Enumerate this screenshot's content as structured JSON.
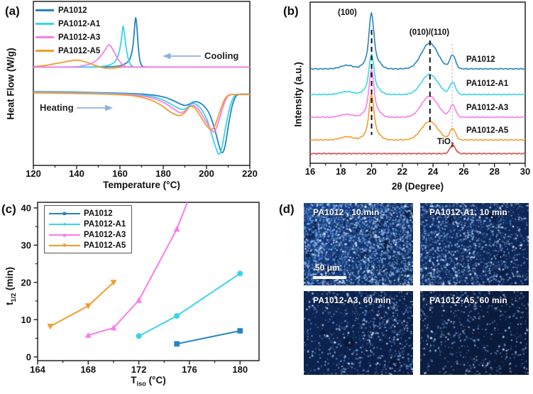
{
  "colors": {
    "pa1012": "#2484c2",
    "pa1012_a1": "#38d4ec",
    "pa1012_a3": "#f97ce8",
    "pa1012_a5": "#f09d2d",
    "tio2": "#dc4a41",
    "annotation_arrow": "#8fb0e0",
    "axis": "#222222",
    "dashed_guide": "#111111",
    "dotted_guide": "#b9aca4"
  },
  "panels": {
    "a": {
      "tag": "(a)",
      "xlabel": "Temperature (°C)",
      "ylabel": "Heat Flow (W/g)",
      "cooling_label": "Cooling",
      "heating_label": "Heating",
      "legend": [
        {
          "label": "PA1012",
          "color": "#2484c2"
        },
        {
          "label": "PA1012-A1",
          "color": "#38d4ec"
        },
        {
          "label": "PA1012-A3",
          "color": "#f97ce8"
        },
        {
          "label": "PA1012-A5",
          "color": "#f09d2d"
        }
      ]
    },
    "b": {
      "tag": "(b)",
      "xlabel": "2θ (Degree)",
      "ylabel": "Intensity (a.u.)",
      "peak_label_100": "(100)",
      "peak_label_010": "(010)/(110)",
      "tio2_label": {
        "main": "TiO",
        "sub": "2"
      },
      "curve_labels": [
        "PA1012",
        "PA1012-A1",
        "PA1012-A3",
        "PA1012-A5"
      ]
    },
    "c": {
      "tag": "(c)",
      "xlabel": {
        "main": "T",
        "sub": "iso",
        "rest": " (°C)"
      },
      "ylabel": {
        "main": "t",
        "sub": "1/2",
        "rest": " (min)"
      },
      "legend": [
        {
          "label": "PA1012",
          "color": "#2484c2",
          "marker": "square"
        },
        {
          "label": "PA1012-A1",
          "color": "#38d4ec",
          "marker": "circle"
        },
        {
          "label": "PA1012-A3",
          "color": "#f97ce8",
          "marker": "triangle-up"
        },
        {
          "label": "PA1012-A5",
          "color": "#f09d2d",
          "marker": "triangle-down"
        }
      ]
    },
    "d": {
      "tag": "(d)",
      "scale_bar_text": "50 μm",
      "images": [
        {
          "label": "PA1012 , 10 min",
          "brightness": "high",
          "has_scale_bar": true
        },
        {
          "label": "PA1012-A1, 10 min",
          "brightness": "medium",
          "has_scale_bar": false
        },
        {
          "label": "PA1012-A3, 60 min",
          "brightness": "low",
          "has_scale_bar": false
        },
        {
          "label": "PA1012-A5, 60 min",
          "brightness": "very-low",
          "has_scale_bar": false
        }
      ]
    }
  },
  "chart_data": [
    {
      "id": "a",
      "type": "line",
      "title": "DSC cooling and heating thermograms",
      "xlabel": "Temperature (°C)",
      "ylabel": "Heat Flow (W/g)",
      "xlim": [
        120,
        220
      ],
      "x_ticks": [
        120,
        140,
        160,
        180,
        200,
        220
      ],
      "x_minor_step": 10,
      "y_axis": "arbitrary (no ticks)",
      "annotations": [
        {
          "text": "Cooling",
          "arrow": "left",
          "near_x": 185
        },
        {
          "text": "Heating",
          "arrow": "right",
          "near_x": 135
        }
      ],
      "series": [
        {
          "name": "PA1012 cooling",
          "color": "#2484c2",
          "peak_c": 167.3,
          "points": [
            [
              120,
              60
            ],
            [
              148,
              60
            ],
            [
              156,
              60.2
            ],
            [
              160,
              60.8
            ],
            [
              163,
              62.5
            ],
            [
              164.8,
              65.5
            ],
            [
              166,
              73
            ],
            [
              166.9,
              86
            ],
            [
              167.3,
              90
            ],
            [
              167.8,
              85
            ],
            [
              168.5,
              72
            ],
            [
              169.3,
              63.5
            ],
            [
              170.2,
              60.8
            ],
            [
              171.5,
              60.1
            ],
            [
              175,
              60
            ],
            [
              220,
              60
            ]
          ]
        },
        {
          "name": "PA1012-A1 cooling",
          "color": "#38d4ec",
          "peak_c": 161.4,
          "points": [
            [
              120,
              60
            ],
            [
              144,
              60
            ],
            [
              151,
              60.3
            ],
            [
              155,
              61.2
            ],
            [
              157.5,
              63
            ],
            [
              159.3,
              67.5
            ],
            [
              160.6,
              76
            ],
            [
              161.4,
              84.8
            ],
            [
              162.1,
              80
            ],
            [
              163.2,
              69
            ],
            [
              164.5,
              62.5
            ],
            [
              165.8,
              60.5
            ],
            [
              167.5,
              60
            ],
            [
              220,
              60
            ]
          ]
        },
        {
          "name": "PA1012-A5 cooling",
          "color": "#f09d2d",
          "peak_c": 140,
          "points": [
            [
              120,
              60.3
            ],
            [
              124,
              60.7
            ],
            [
              128,
              61.5
            ],
            [
              132,
              62.5
            ],
            [
              136,
              63.5
            ],
            [
              139.8,
              64.2
            ],
            [
              142.5,
              63.7
            ],
            [
              145.5,
              62.5
            ],
            [
              148.5,
              61
            ],
            [
              151.5,
              59.7
            ],
            [
              154.5,
              59.2
            ],
            [
              157.5,
              59.4
            ],
            [
              160.5,
              59.8
            ],
            [
              163.5,
              60
            ],
            [
              220,
              60
            ]
          ]
        },
        {
          "name": "PA1012-A3 cooling",
          "color": "#f97ce8",
          "peak_c": 154.8,
          "points": [
            [
              120,
              60
            ],
            [
              138,
              60.1
            ],
            [
              143,
              60.8
            ],
            [
              146.5,
              62
            ],
            [
              149.5,
              64.5
            ],
            [
              152.5,
              69
            ],
            [
              154.8,
              73.5
            ],
            [
              156.8,
              70.5
            ],
            [
              158.8,
              65.5
            ],
            [
              160.8,
              62
            ],
            [
              162.5,
              60.5
            ],
            [
              164.5,
              60.05
            ],
            [
              220,
              60
            ]
          ]
        },
        {
          "name": "PA1012 heating",
          "color": "#2484c2",
          "melt_c": 207.3,
          "points": [
            [
              120,
              45
            ],
            [
              138,
              44.7
            ],
            [
              155,
              44.2
            ],
            [
              165,
              43.8
            ],
            [
              172,
              43.3
            ],
            [
              177,
              42.6
            ],
            [
              181.5,
              41.2
            ],
            [
              185,
              39.3
            ],
            [
              188,
              37.4
            ],
            [
              190.2,
              36.6
            ],
            [
              192,
              37.3
            ],
            [
              194.3,
              38.8
            ],
            [
              196.5,
              38.4
            ],
            [
              199,
              36
            ],
            [
              201.5,
              31
            ],
            [
              204,
              21
            ],
            [
              206,
              11
            ],
            [
              207.3,
              7.8
            ],
            [
              208.6,
              12
            ],
            [
              210.2,
              25
            ],
            [
              211.8,
              36
            ],
            [
              213.5,
              42
            ],
            [
              215.5,
              43.4
            ],
            [
              218,
              43.5
            ],
            [
              220,
              43.5
            ]
          ]
        },
        {
          "name": "PA1012-A1 heating",
          "color": "#38d4ec",
          "melt_c": 205.9,
          "points": [
            [
              120,
              44.7
            ],
            [
              138,
              44.4
            ],
            [
              155,
              43.9
            ],
            [
              164,
              43.4
            ],
            [
              170,
              42.9
            ],
            [
              175,
              42
            ],
            [
              179,
              40.4
            ],
            [
              182.5,
              38.2
            ],
            [
              186,
              35.5
            ],
            [
              188.7,
              34.2
            ],
            [
              190.8,
              35
            ],
            [
              193.2,
              37.6
            ],
            [
              195.5,
              37
            ],
            [
              198,
              33.5
            ],
            [
              200.5,
              27
            ],
            [
              202.8,
              17
            ],
            [
              204.8,
              9
            ],
            [
              205.9,
              6.9
            ],
            [
              207.2,
              11.5
            ],
            [
              208.8,
              23
            ],
            [
              210.6,
              34.5
            ],
            [
              212.3,
              41
            ],
            [
              214,
              43.2
            ],
            [
              216.5,
              43.4
            ],
            [
              220,
              43.4
            ]
          ]
        },
        {
          "name": "PA1012-A3 heating",
          "color": "#f97ce8",
          "melt_c": 203.2,
          "points": [
            [
              120,
              44.4
            ],
            [
              138,
              44.1
            ],
            [
              155,
              43.6
            ],
            [
              163,
              43.2
            ],
            [
              169,
              42.6
            ],
            [
              174,
              41.4
            ],
            [
              178,
              39.7
            ],
            [
              181.5,
              37.4
            ],
            [
              185,
              34.3
            ],
            [
              187.8,
              32.2
            ],
            [
              190,
              33.2
            ],
            [
              192.8,
              36.4
            ],
            [
              195,
              35.8
            ],
            [
              197.2,
              32.5
            ],
            [
              199.5,
              27.5
            ],
            [
              201.5,
              23
            ],
            [
              203.2,
              20.5
            ],
            [
              204.6,
              23
            ],
            [
              206.2,
              29.5
            ],
            [
              207.8,
              36.5
            ],
            [
              209.5,
              41.5
            ],
            [
              211.2,
              43.1
            ],
            [
              214,
              43.3
            ],
            [
              220,
              43.3
            ]
          ]
        },
        {
          "name": "PA1012-A5 heating",
          "color": "#f09d2d",
          "melt_c": 202.3,
          "points": [
            [
              120,
              44.2
            ],
            [
              138,
              43.9
            ],
            [
              152,
              43.5
            ],
            [
              160,
              43.1
            ],
            [
              166,
              42.5
            ],
            [
              171,
              41.2
            ],
            [
              175.5,
              39.2
            ],
            [
              179.5,
              36.3
            ],
            [
              183,
              32.8
            ],
            [
              185.8,
              30.9
            ],
            [
              187.5,
              30.4
            ],
            [
              189.8,
              32
            ],
            [
              192.3,
              35.8
            ],
            [
              194.3,
              35.3
            ],
            [
              196.5,
              31.5
            ],
            [
              198.8,
              26.5
            ],
            [
              200.8,
              23
            ],
            [
              202.3,
              21.9
            ],
            [
              203.8,
              24
            ],
            [
              205.3,
              29.5
            ],
            [
              207,
              36
            ],
            [
              208.7,
              41
            ],
            [
              210.5,
              43
            ],
            [
              213,
              43.2
            ],
            [
              220,
              43.2
            ]
          ]
        }
      ]
    },
    {
      "id": "b",
      "type": "line",
      "title": "XRD patterns",
      "xlabel": "2θ (Degree)",
      "ylabel": "Intensity (a.u.)",
      "xlim": [
        16,
        30
      ],
      "x_ticks": [
        16,
        18,
        20,
        22,
        24,
        26,
        28,
        30
      ],
      "x_minor_step": 1,
      "peak_guides": [
        {
          "label": "(100)",
          "two_theta": 20.0,
          "style": "dashed"
        },
        {
          "label": "(010)/(110)",
          "two_theta": 23.8,
          "style": "dashed"
        },
        {
          "label": "TiO2",
          "two_theta": 25.25,
          "style": "dotted"
        }
      ],
      "series": [
        {
          "name": "PA1012",
          "color": "#2484c2",
          "offset": 58.6,
          "p100": 33,
          "p010": 16,
          "p25": 8.5,
          "p18": 2.2
        },
        {
          "name": "PA1012-A1",
          "color": "#38d4ec",
          "offset": 42.7,
          "p100": 24,
          "p010": 12.5,
          "p25": 7.5,
          "p18": 1.8
        },
        {
          "name": "PA1012-A3",
          "color": "#f97ce8",
          "offset": 28.6,
          "p100": 28,
          "p010": 13,
          "p25": 7.5,
          "p18": 1.8
        },
        {
          "name": "PA1012-A5",
          "color": "#f09d2d",
          "offset": 14.5,
          "p100": 27,
          "p010": 11.5,
          "p25": 7,
          "p18": 2
        },
        {
          "name": "TiO2",
          "color": "#dc4a41",
          "offset": 6,
          "p100": 0,
          "p010": 0,
          "p25": 5.2,
          "p18": 0
        }
      ]
    },
    {
      "id": "c",
      "type": "scatter-line",
      "title": "Crystallization half-time vs isothermal temperature",
      "xlabel": "T_iso (°C)",
      "ylabel": "t_1/2 (min)",
      "xlim": [
        164,
        181.5
      ],
      "ylim": [
        -1,
        41.5
      ],
      "x_ticks": [
        164,
        168,
        172,
        176,
        180
      ],
      "x_minor": [
        166,
        170,
        174,
        178
      ],
      "y_ticks": [
        0,
        10,
        20,
        30,
        40
      ],
      "y_minor": [
        5,
        15,
        25,
        35
      ],
      "series": [
        {
          "name": "PA1012",
          "color": "#2484c2",
          "marker": "square",
          "x": [
            175,
            180
          ],
          "y": [
            3.5,
            7
          ]
        },
        {
          "name": "PA1012-A1",
          "color": "#38d4ec",
          "marker": "circle",
          "x": [
            172,
            175,
            180
          ],
          "y": [
            5.6,
            11,
            22.4
          ]
        },
        {
          "name": "PA1012-A3",
          "color": "#f97ce8",
          "marker": "triangle-up",
          "x": [
            168,
            170,
            172,
            175
          ],
          "y": [
            5.8,
            7.8,
            15.2,
            34.3
          ],
          "line_ext": [
            176.1,
            43.8
          ]
        },
        {
          "name": "PA1012-A5",
          "color": "#f09d2d",
          "marker": "triangle-down",
          "x": [
            165,
            168,
            170
          ],
          "y": [
            8.2,
            13.7,
            20
          ]
        }
      ]
    },
    {
      "id": "d",
      "type": "image-grid",
      "title": "Polarized optical micrographs",
      "scale_bar": "50 μm",
      "images": [
        {
          "label": "PA1012 , 10 min",
          "brightness": "high"
        },
        {
          "label": "PA1012-A1, 10 min",
          "brightness": "medium"
        },
        {
          "label": "PA1012-A3, 60 min",
          "brightness": "low"
        },
        {
          "label": "PA1012-A5, 60 min",
          "brightness": "very-low"
        }
      ]
    }
  ]
}
